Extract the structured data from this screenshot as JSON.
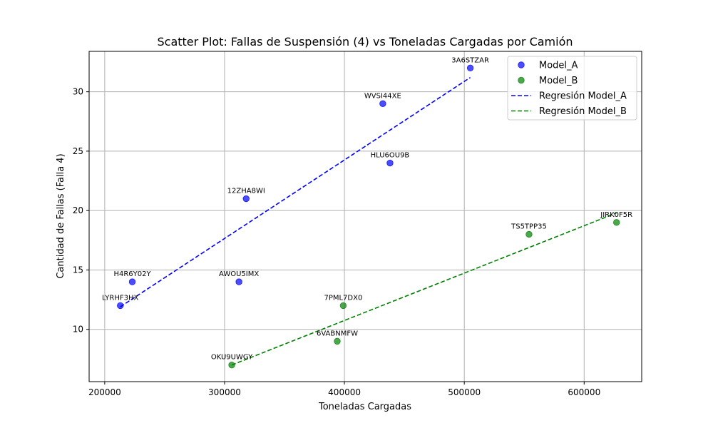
{
  "chart_data": {
    "type": "scatter",
    "title": "Scatter Plot: Fallas de Suspensión (4) vs Toneladas Cargadas por Camión",
    "xlabel": "Toneladas Cargadas",
    "ylabel": "Cantidad de Fallas (Falla 4)",
    "xlim": [
      187000,
      648000
    ],
    "ylim": [
      5.6,
      33.4
    ],
    "xticks": [
      200000,
      300000,
      400000,
      500000,
      600000
    ],
    "yticks": [
      10,
      15,
      20,
      25,
      30
    ],
    "grid": true,
    "legend_position": "top-right",
    "series": [
      {
        "name": "Model_A",
        "color": "#0000ff",
        "points": [
          {
            "label": "LYRHF3HX",
            "x": 213000,
            "y": 12
          },
          {
            "label": "H4R6Y02Y",
            "x": 223000,
            "y": 14
          },
          {
            "label": "AWOU5IMX",
            "x": 312000,
            "y": 14
          },
          {
            "label": "12ZHA8WI",
            "x": 318000,
            "y": 21
          },
          {
            "label": "WVSI44XE",
            "x": 432000,
            "y": 29
          },
          {
            "label": "HLU6OU9B",
            "x": 438000,
            "y": 24
          },
          {
            "label": "3A6STZAR",
            "x": 505000,
            "y": 32
          }
        ]
      },
      {
        "name": "Model_B",
        "color": "#008000",
        "points": [
          {
            "label": "OKU9UWGY",
            "x": 306000,
            "y": 7
          },
          {
            "label": "6VABNMFW",
            "x": 394000,
            "y": 9
          },
          {
            "label": "7PML7DX0",
            "x": 399000,
            "y": 12
          },
          {
            "label": "TS5TPP35",
            "x": 554000,
            "y": 18
          },
          {
            "label": "JIRK0F5R",
            "x": 627000,
            "y": 19
          }
        ]
      }
    ],
    "regressions": [
      {
        "name": "Regresión Model_A",
        "color": "#0000ff",
        "x": [
          213000,
          505000
        ],
        "y": [
          11.9,
          31.2
        ]
      },
      {
        "name": "Regresión Model_B",
        "color": "#008000",
        "x": [
          306000,
          627000
        ],
        "y": [
          7.0,
          19.8
        ]
      }
    ]
  }
}
